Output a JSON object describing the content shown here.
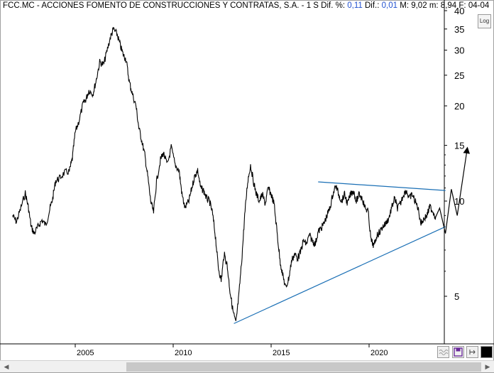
{
  "header": {
    "symbol": "FCC.MC",
    "name": "ACCIONES FOMENTO DE CONSTRUCCIONES Y CONTRATAS, S.A.",
    "period": "1 S",
    "dif_pct_label": "Dif. %:",
    "dif_pct_value": "0,11",
    "dif_label": "Dif.:",
    "dif_value": "0,01",
    "max_label": "M:",
    "max_value": "9,02",
    "min_label": "m:",
    "min_value": "8,94",
    "date_label": "F:",
    "date_value": "04-04"
  },
  "toolbar": {
    "log_label": "Log"
  },
  "colors": {
    "price": "#000000",
    "trendline": "#1a6fb5",
    "grid": "#000000",
    "accent": "#2050d0"
  },
  "chart_data": {
    "type": "line",
    "scale": "log",
    "ylim": [
      3.9,
      41
    ],
    "xlim": [
      2001.6,
      2024.2
    ],
    "y_ticks": [
      {
        "value": 5,
        "label": "5"
      },
      {
        "value": 10,
        "label": "10"
      },
      {
        "value": 15,
        "label": "15"
      },
      {
        "value": 20,
        "label": "20"
      },
      {
        "value": 25,
        "label": "25"
      },
      {
        "value": 30,
        "label": "30"
      },
      {
        "value": 35,
        "label": "35"
      },
      {
        "value": 40,
        "label": "40"
      }
    ],
    "x_ticks": [
      {
        "value": 2005,
        "label": "2005"
      },
      {
        "value": 2010,
        "label": "2010"
      },
      {
        "value": 2015,
        "label": "2015"
      },
      {
        "value": 2020,
        "label": "2020"
      }
    ],
    "series": [
      {
        "points": [
          [
            2001.8,
            9.0
          ],
          [
            2002.0,
            8.6
          ],
          [
            2002.2,
            9.4
          ],
          [
            2002.45,
            10.6
          ],
          [
            2002.6,
            9.6
          ],
          [
            2002.75,
            8.3
          ],
          [
            2002.9,
            7.9
          ],
          [
            2003.1,
            8.3
          ],
          [
            2003.3,
            8.7
          ],
          [
            2003.5,
            8.4
          ],
          [
            2003.7,
            9.4
          ],
          [
            2003.85,
            10.2
          ],
          [
            2004.0,
            11.6
          ],
          [
            2004.2,
            11.8
          ],
          [
            2004.45,
            12.3
          ],
          [
            2004.7,
            12.4
          ],
          [
            2004.85,
            13.6
          ],
          [
            2005.0,
            16.5
          ],
          [
            2005.2,
            18.0
          ],
          [
            2005.4,
            20.3
          ],
          [
            2005.55,
            21.0
          ],
          [
            2005.7,
            22.4
          ],
          [
            2005.9,
            21.8
          ],
          [
            2006.05,
            23.8
          ],
          [
            2006.25,
            27.5
          ],
          [
            2006.45,
            27.0
          ],
          [
            2006.6,
            29.5
          ],
          [
            2006.8,
            33.0
          ],
          [
            2006.95,
            35.0
          ],
          [
            2007.15,
            33.5
          ],
          [
            2007.3,
            31.0
          ],
          [
            2007.45,
            29.0
          ],
          [
            2007.6,
            28.0
          ],
          [
            2007.75,
            24.0
          ],
          [
            2007.9,
            22.0
          ],
          [
            2008.1,
            20.0
          ],
          [
            2008.25,
            17.0
          ],
          [
            2008.4,
            15.5
          ],
          [
            2008.55,
            14.0
          ],
          [
            2008.7,
            12.0
          ],
          [
            2008.85,
            10.0
          ],
          [
            2009.0,
            9.2
          ],
          [
            2009.15,
            11.5
          ],
          [
            2009.35,
            13.5
          ],
          [
            2009.5,
            14.2
          ],
          [
            2009.7,
            13.0
          ],
          [
            2009.9,
            14.8
          ],
          [
            2010.1,
            13.0
          ],
          [
            2010.3,
            12.5
          ],
          [
            2010.45,
            10.5
          ],
          [
            2010.6,
            9.5
          ],
          [
            2010.8,
            10.0
          ],
          [
            2010.95,
            11.0
          ],
          [
            2011.1,
            12.0
          ],
          [
            2011.25,
            12.5
          ],
          [
            2011.4,
            11.0
          ],
          [
            2011.55,
            10.8
          ],
          [
            2011.7,
            10.2
          ],
          [
            2011.85,
            10.0
          ],
          [
            2012.0,
            9.2
          ],
          [
            2012.15,
            7.8
          ],
          [
            2012.3,
            6.2
          ],
          [
            2012.45,
            5.6
          ],
          [
            2012.6,
            6.8
          ],
          [
            2012.75,
            6.3
          ],
          [
            2012.9,
            5.2
          ],
          [
            2013.05,
            4.5
          ],
          [
            2013.2,
            4.1
          ],
          [
            2013.35,
            5.0
          ],
          [
            2013.5,
            6.5
          ],
          [
            2013.65,
            9.0
          ],
          [
            2013.8,
            11.5
          ],
          [
            2013.95,
            13.0
          ],
          [
            2014.1,
            11.5
          ],
          [
            2014.25,
            10.5
          ],
          [
            2014.4,
            10.0
          ],
          [
            2014.55,
            10.5
          ],
          [
            2014.7,
            9.8
          ],
          [
            2014.85,
            11.0
          ],
          [
            2015.0,
            10.5
          ],
          [
            2015.15,
            9.8
          ],
          [
            2015.3,
            8.0
          ],
          [
            2015.45,
            6.5
          ],
          [
            2015.6,
            5.8
          ],
          [
            2015.75,
            5.3
          ],
          [
            2015.9,
            5.7
          ],
          [
            2016.05,
            6.5
          ],
          [
            2016.2,
            6.8
          ],
          [
            2016.35,
            6.6
          ],
          [
            2016.5,
            6.9
          ],
          [
            2016.65,
            7.5
          ],
          [
            2016.8,
            7.3
          ],
          [
            2016.95,
            7.8
          ],
          [
            2017.1,
            7.5
          ],
          [
            2017.25,
            7.3
          ],
          [
            2017.4,
            8.0
          ],
          [
            2017.55,
            8.2
          ],
          [
            2017.7,
            8.5
          ],
          [
            2017.85,
            9.0
          ],
          [
            2018.0,
            9.5
          ],
          [
            2018.15,
            10.5
          ],
          [
            2018.3,
            11.2
          ],
          [
            2018.45,
            10.5
          ],
          [
            2018.6,
            10.0
          ],
          [
            2018.75,
            10.5
          ],
          [
            2018.9,
            9.8
          ],
          [
            2019.05,
            10.5
          ],
          [
            2019.2,
            10.8
          ],
          [
            2019.35,
            10.0
          ],
          [
            2019.5,
            10.5
          ],
          [
            2019.65,
            10.2
          ],
          [
            2019.8,
            9.5
          ],
          [
            2019.95,
            9.3
          ],
          [
            2020.1,
            7.5
          ],
          [
            2020.25,
            7.2
          ],
          [
            2020.4,
            7.8
          ],
          [
            2020.55,
            8.0
          ],
          [
            2020.7,
            8.3
          ],
          [
            2020.85,
            8.5
          ],
          [
            2021.0,
            8.8
          ],
          [
            2021.15,
            9.5
          ],
          [
            2021.3,
            10.2
          ],
          [
            2021.45,
            9.5
          ],
          [
            2021.6,
            9.8
          ],
          [
            2021.75,
            10.5
          ],
          [
            2021.9,
            10.8
          ],
          [
            2022.05,
            10.2
          ],
          [
            2022.2,
            10.5
          ],
          [
            2022.35,
            10.0
          ],
          [
            2022.5,
            9.5
          ],
          [
            2022.65,
            8.5
          ],
          [
            2022.8,
            8.8
          ],
          [
            2022.95,
            9.0
          ],
          [
            2023.1,
            9.6
          ],
          [
            2023.25,
            9.3
          ],
          [
            2023.4,
            8.9
          ]
        ]
      }
    ],
    "trendlines": [
      {
        "points": [
          [
            2013.1,
            4.1
          ],
          [
            2023.9,
            8.3
          ]
        ]
      },
      {
        "points": [
          [
            2017.4,
            11.5
          ],
          [
            2023.9,
            10.8
          ]
        ]
      }
    ],
    "projection": {
      "points": [
        [
          2023.4,
          8.9
        ],
        [
          2023.6,
          9.5
        ],
        [
          2023.9,
          7.9
        ],
        [
          2024.2,
          10.9
        ],
        [
          2024.5,
          9.0
        ],
        [
          2025.0,
          14.5
        ]
      ]
    }
  }
}
